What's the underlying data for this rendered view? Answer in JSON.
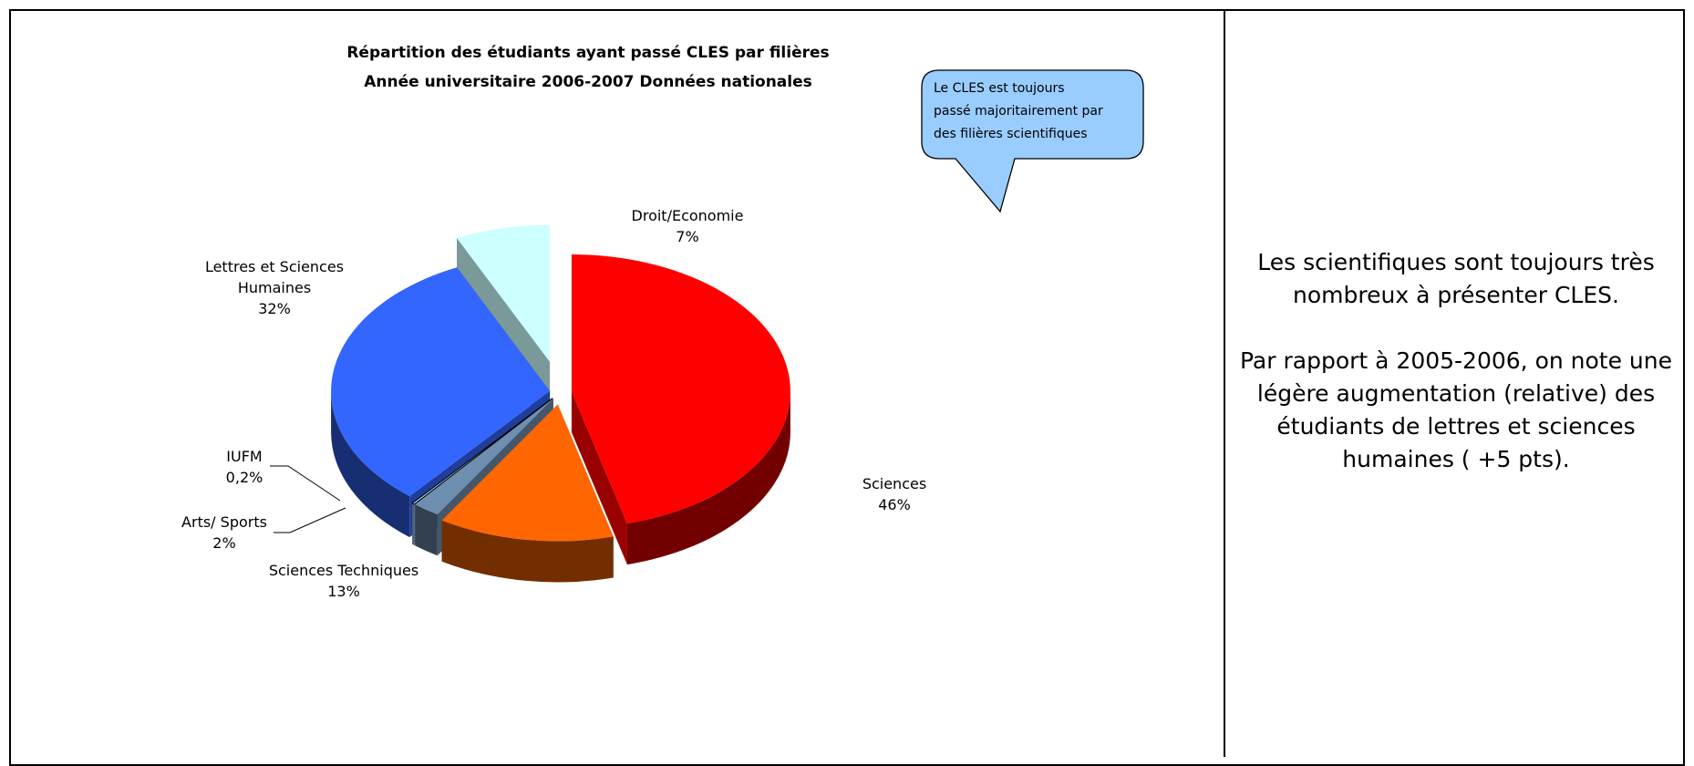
{
  "chart_data": {
    "type": "pie",
    "variant": "3d-exploded",
    "title": "Répartition des étudiants ayant passé CLES par filières",
    "subtitle": "Année universitaire 2006-2007 Données nationales",
    "slices": [
      {
        "name": "Sciences",
        "value": 46,
        "label": "46%",
        "color": "#ff0000"
      },
      {
        "name": "Sciences Techniques",
        "value": 13,
        "label": "13%",
        "color": "#ff6600"
      },
      {
        "name": "Arts/ Sports",
        "value": 2,
        "label": "2%",
        "color": "#6f8fb0"
      },
      {
        "name": "IUFM",
        "value": 0.2,
        "label": "0,2%",
        "color": "#a9d4ff"
      },
      {
        "name": "Lettres et Sciences Humaines",
        "value": 32,
        "label": "32%",
        "color": "#3366ff"
      },
      {
        "name": "Droit/Economie",
        "value": 7,
        "label": "7%",
        "color": "#ccffff"
      }
    ],
    "legend": "none (labels on slices)",
    "callout": {
      "lines": [
        "Le CLES est toujours",
        "passé majoritairement par",
        "des filières scientifiques"
      ],
      "color": "#99ccff"
    }
  },
  "side_panel": {
    "line1": "Les scientifiques sont toujours très",
    "line2": "nombreux à présenter CLES.",
    "line3": "Par rapport à 2005-2006, on note une",
    "line4": "légère augmentation (relative) des",
    "line5": "étudiants de lettres et sciences",
    "line6": "humaines ( +5 pts)."
  }
}
